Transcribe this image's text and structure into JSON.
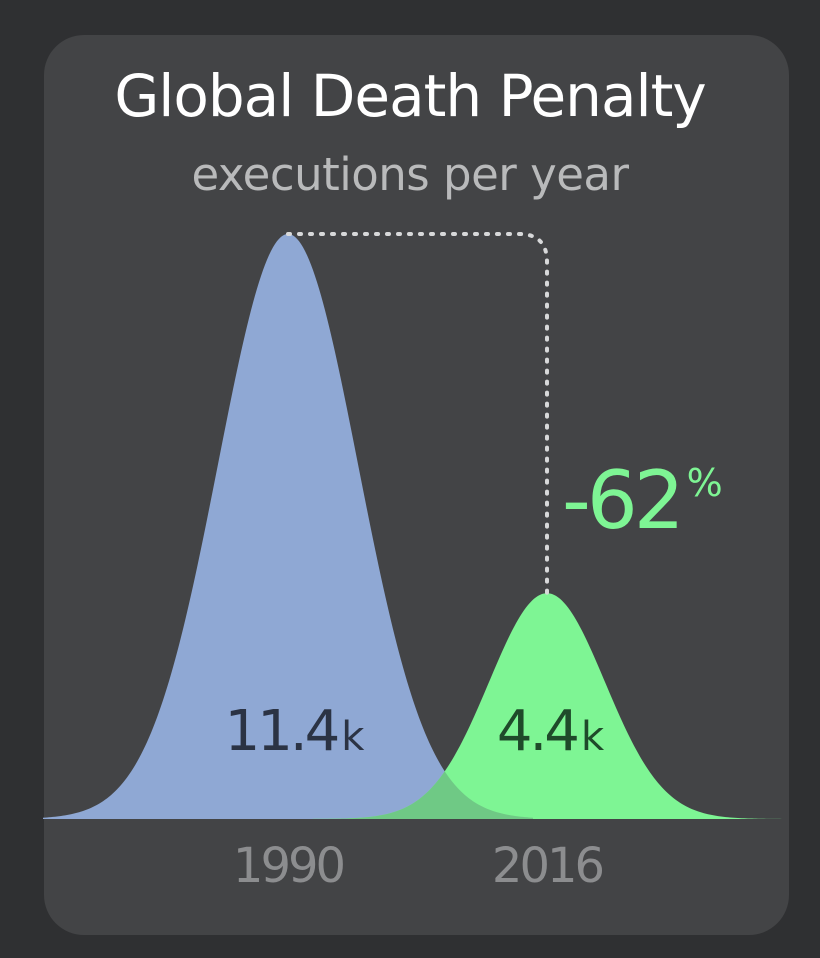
{
  "chart_data": {
    "type": "area",
    "title": "Global Death Penalty",
    "subtitle": "executions per year",
    "series": [
      {
        "category": "1990",
        "value": 11.4,
        "label": "11.4",
        "unit": "k",
        "color": "#8fa8d4",
        "label_color": "#2b3344"
      },
      {
        "category": "2016",
        "value": 4.4,
        "label": "4.4",
        "unit": "k",
        "color": "#7ef594",
        "label_color": "#1f4a2a"
      }
    ],
    "annotation": {
      "text": "-62",
      "unit": "%",
      "color": "#7ef594"
    },
    "axis_label_color": "#8c8d8f",
    "overlap_color": "#6fc985"
  }
}
